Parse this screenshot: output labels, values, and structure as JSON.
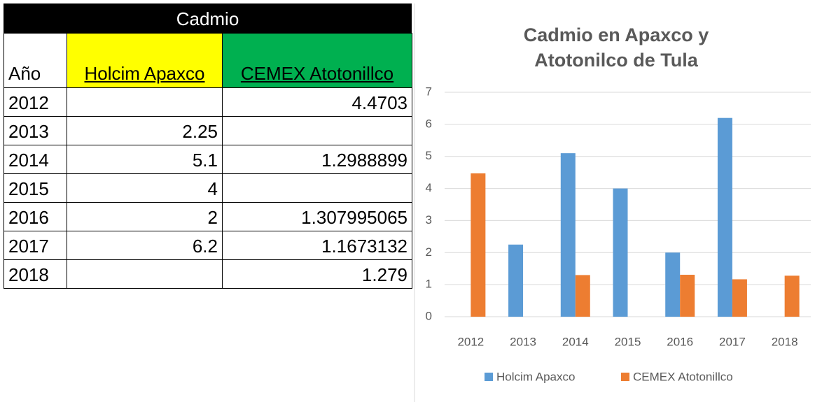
{
  "table": {
    "title": "Cadmio",
    "headers": [
      "Año",
      "Holcim Apaxco",
      "CEMEX Atotonillco"
    ],
    "rows": [
      [
        2012,
        null,
        4.4703
      ],
      [
        2013,
        2.25,
        null
      ],
      [
        2014,
        5.1,
        1.2988899
      ],
      [
        2015,
        4,
        null
      ],
      [
        2016,
        2,
        1.307995065
      ],
      [
        2017,
        6.2,
        1.1673132
      ],
      [
        2018,
        null,
        1.279
      ]
    ]
  },
  "chart_data": {
    "type": "bar",
    "title": "Cadmio en Apaxco y Atotonilco de Tula",
    "categories": [
      "2012",
      "2013",
      "2014",
      "2015",
      "2016",
      "2017",
      "2018"
    ],
    "series": [
      {
        "name": "Holcim Apaxco",
        "color": "#5b9bd5",
        "values": [
          null,
          2.25,
          5.1,
          4,
          2,
          6.2,
          null
        ]
      },
      {
        "name": "CEMEX Atotonillco",
        "color": "#ed7d31",
        "values": [
          4.4703,
          null,
          1.2988899,
          null,
          1.307995065,
          1.1673132,
          1.279
        ]
      }
    ],
    "ylim": [
      0,
      7
    ],
    "yticks": [
      0,
      1,
      2,
      3,
      4,
      5,
      6,
      7
    ],
    "grid": true,
    "legend": "bottom"
  }
}
